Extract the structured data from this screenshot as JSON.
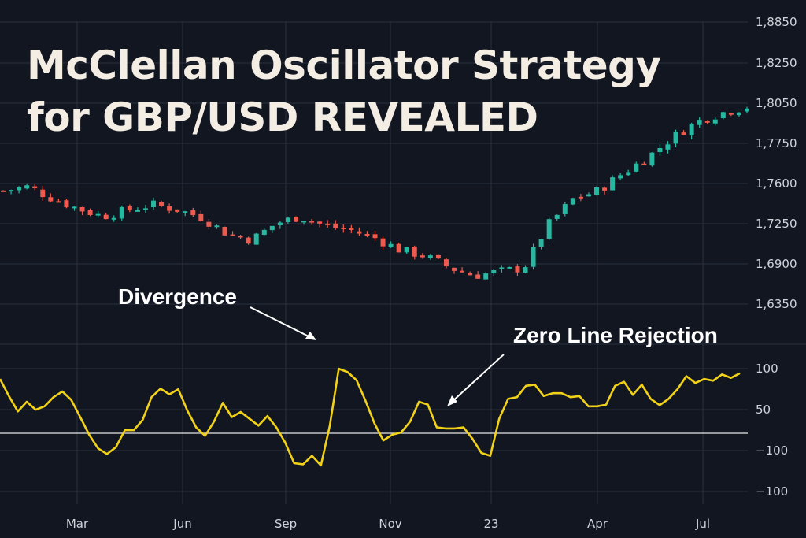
{
  "title": {
    "line1": "McClellan Oscillator Strategy",
    "line2": "for GBP/USD REVEALED"
  },
  "annotations": {
    "divergence": "Divergence",
    "zero_line": "Zero Line Rejection"
  },
  "colors": {
    "background": "#121620",
    "bullish": "#26b8a0",
    "bearish": "#ef5a4e",
    "oscillator": "#f2d218",
    "zero_line": "#e8e8e8",
    "grid": "#2a3040"
  },
  "chart_data": [
    {
      "type": "candlestick",
      "title": "",
      "price_axis_labels": [
        "1,8850",
        "1,8250",
        "1,8050",
        "1,7750",
        "1,7600",
        "1,7250",
        "1,6900",
        "1,6350"
      ],
      "x_tick_labels": [
        "Mar",
        "Jun",
        "Sep",
        "Nov",
        "23",
        "Apr",
        "Jul"
      ],
      "trend_points": [
        1.738,
        1.742,
        1.73,
        1.72,
        1.712,
        1.718,
        1.724,
        1.719,
        1.711,
        1.695,
        1.688,
        1.705,
        1.712,
        1.702,
        1.698,
        1.69,
        1.678,
        1.672,
        1.66,
        1.652,
        1.656,
        1.66,
        1.704,
        1.73,
        1.738,
        1.756,
        1.772,
        1.792,
        1.808,
        1.817,
        1.823
      ],
      "trend_index_span": 94,
      "noise_amplitude": 0.005,
      "price_range": [
        1.612,
        1.885
      ]
    },
    {
      "type": "line",
      "name": "",
      "tick_labels": [
        "100",
        "50",
        "−100",
        "−100"
      ],
      "values": [
        90,
        60,
        33,
        50,
        36,
        42,
        58,
        68,
        53,
        23,
        -8,
        -32,
        -42,
        -30,
        0,
        0,
        18,
        58,
        73,
        63,
        72,
        35,
        5,
        -10,
        15,
        48,
        23,
        32,
        20,
        8,
        25,
        5,
        -22,
        -58,
        -60,
        -45,
        -62,
        8,
        108,
        102,
        88,
        52,
        12,
        -18,
        -8,
        -4,
        15,
        50,
        45,
        5,
        3,
        3,
        5,
        -15,
        -40,
        -45,
        20,
        55,
        58,
        78,
        80,
        60,
        65,
        65,
        58,
        60,
        42,
        42,
        45,
        78,
        85,
        62,
        80,
        55,
        44,
        55,
        72,
        95,
        83,
        90,
        87,
        98,
        92,
        100
      ],
      "ylim": [
        -130,
        140
      ],
      "zero_line": 0
    }
  ]
}
